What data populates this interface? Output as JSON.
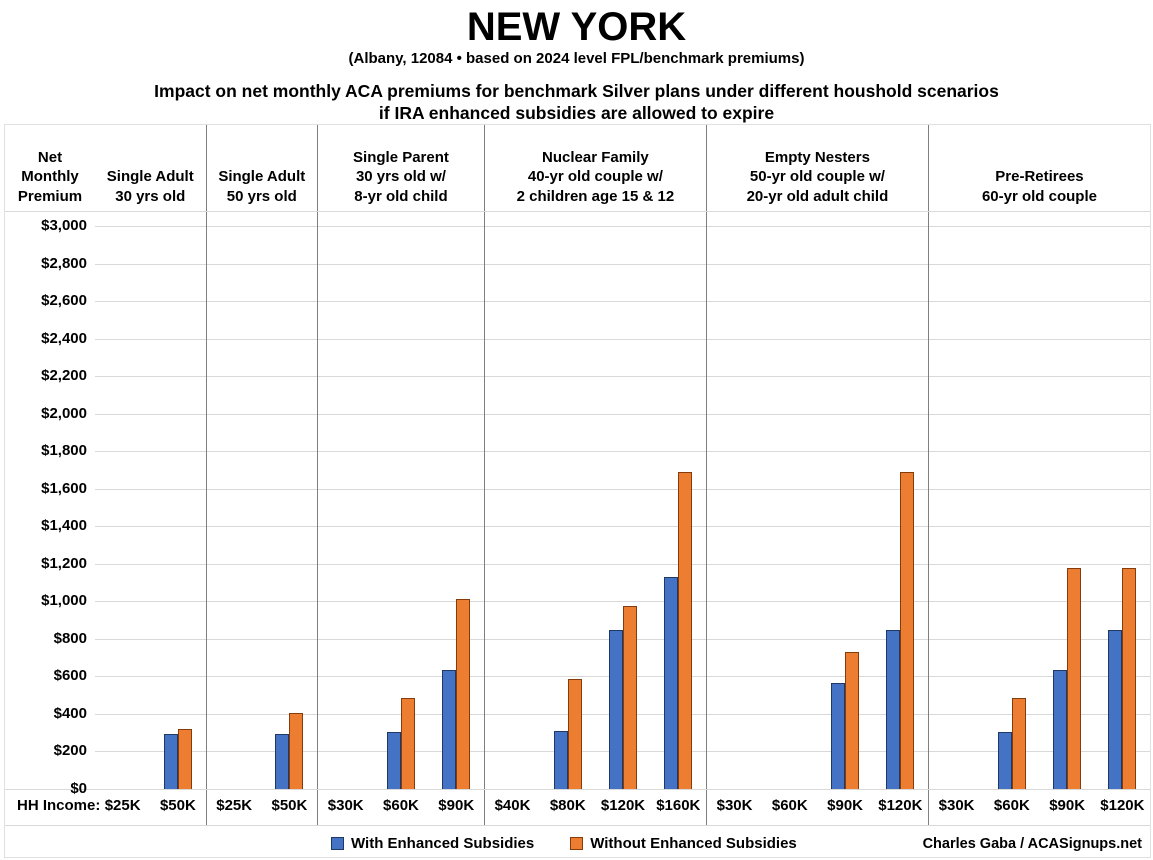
{
  "title": "NEW YORK",
  "subtitle": "(Albany, 12084 • based on 2024 level FPL/benchmark premiums)",
  "heading_line1": "Impact on net monthly ACA premiums for benchmark Silver plans under different houshold scenarios",
  "heading_line2": "if IRA enhanced subsidies are allowed to expire",
  "credit": "Charles Gaba / ACASignups.net",
  "x_axis_prefix": "HH Income:",
  "legend": {
    "with_label": "With Enhanced Subsidies",
    "without_label": "Without Enhanced Subsidies"
  },
  "chart_data": {
    "type": "bar",
    "title": "NEW YORK",
    "subtitle": "(Albany, 12084 • based on 2024 level FPL/benchmark premiums)",
    "y_axis_title": "Net Monthly Premium",
    "ylim": [
      0,
      3000
    ],
    "ytick_step": 200,
    "currency": "$",
    "grid": true,
    "legend_position": "bottom",
    "series": [
      {
        "name": "With Enhanced Subsidies",
        "color": "#4472C4",
        "border": "#1F3864"
      },
      {
        "name": "Without Enhanced Subsidies",
        "color": "#ED7D31",
        "border": "#843C0C"
      }
    ],
    "groups": [
      {
        "label": "Single Adult\n30 yrs old",
        "incomes": [
          "$25K",
          "$50K"
        ],
        "with_enhanced": [
          0,
          295
        ],
        "without_enhanced": [
          0,
          320
        ]
      },
      {
        "label": "Single Adult\n50 yrs old",
        "incomes": [
          "$25K",
          "$50K"
        ],
        "with_enhanced": [
          0,
          295
        ],
        "without_enhanced": [
          0,
          405
        ]
      },
      {
        "label": "Single Parent\n30 yrs old w/\n8-yr old child",
        "incomes": [
          "$30K",
          "$60K",
          "$90K"
        ],
        "with_enhanced": [
          0,
          305,
          635
        ],
        "without_enhanced": [
          0,
          485,
          1010
        ]
      },
      {
        "label": "Nuclear Family\n40-yr old couple w/\n2 children age 15 & 12",
        "incomes": [
          "$40K",
          "$80K",
          "$120K",
          "$160K"
        ],
        "with_enhanced": [
          0,
          310,
          845,
          1130
        ],
        "without_enhanced": [
          0,
          585,
          975,
          1690
        ]
      },
      {
        "label": "Empty Nesters\n50-yr old couple w/\n20-yr old adult child",
        "incomes": [
          "$30K",
          "$60K",
          "$90K",
          "$120K"
        ],
        "with_enhanced": [
          0,
          0,
          565,
          845
        ],
        "without_enhanced": [
          0,
          0,
          730,
          1690
        ]
      },
      {
        "label": "Pre-Retirees\n60-yr old couple",
        "incomes": [
          "$30K",
          "$60K",
          "$90K",
          "$120K"
        ],
        "with_enhanced": [
          0,
          305,
          635,
          845
        ],
        "without_enhanced": [
          0,
          485,
          1180,
          1180
        ]
      }
    ]
  }
}
